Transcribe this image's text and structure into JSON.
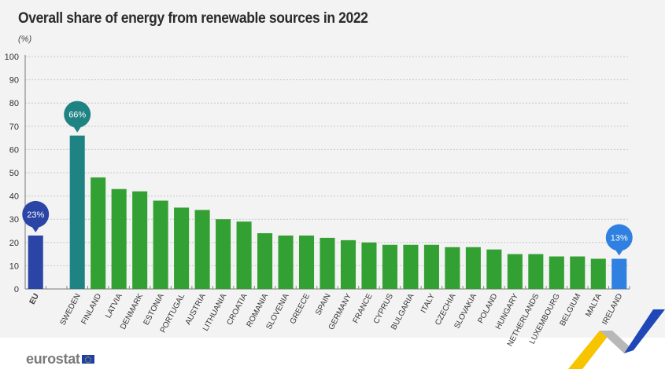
{
  "chart_data": {
    "type": "bar",
    "title": "Overall share of energy from renewable sources in 2022",
    "ylabel": "(%)",
    "xlabel": "",
    "ylim": [
      0,
      100
    ],
    "yticks": [
      0,
      10,
      20,
      30,
      40,
      50,
      60,
      70,
      80,
      90,
      100
    ],
    "grid": true,
    "categories": [
      "EU",
      "",
      "SWEDEN",
      "FINLAND",
      "LATVIA",
      "DENMARK",
      "ESTONIA",
      "PORTUGAL",
      "AUSTRIA",
      "LITHUANIA",
      "CROATIA",
      "ROMANIA",
      "SLOVENIA",
      "GREECE",
      "SPAIN",
      "GERMANY",
      "FRANCE",
      "CYPRUS",
      "BULGARIA",
      "ITALY",
      "CZECHIA",
      "SLOVAKIA",
      "POLAND",
      "HUNGARY",
      "NETHERLANDS",
      "LUXEMBOURG",
      "BELGIUM",
      "MALTA",
      "IRELAND"
    ],
    "values": [
      23,
      null,
      66,
      48,
      43,
      42,
      38,
      35,
      34,
      30,
      29,
      24,
      23,
      23,
      22,
      21,
      20,
      19,
      19,
      19,
      18,
      18,
      17,
      15,
      15,
      14,
      14,
      13,
      13
    ],
    "bar_colors": {
      "EU": "#2a45a6",
      "SWEDEN": "#208383",
      "default": "#33a033",
      "IRELAND": "#2f80e0"
    },
    "annotations": [
      {
        "category": "EU",
        "label": "23%",
        "color": "#2a45a6"
      },
      {
        "category": "SWEDEN",
        "label": "66%",
        "color": "#208383"
      },
      {
        "category": "IRELAND",
        "label": "13%",
        "color": "#2f80e0"
      }
    ]
  },
  "footer": {
    "brand": "eurostat"
  }
}
